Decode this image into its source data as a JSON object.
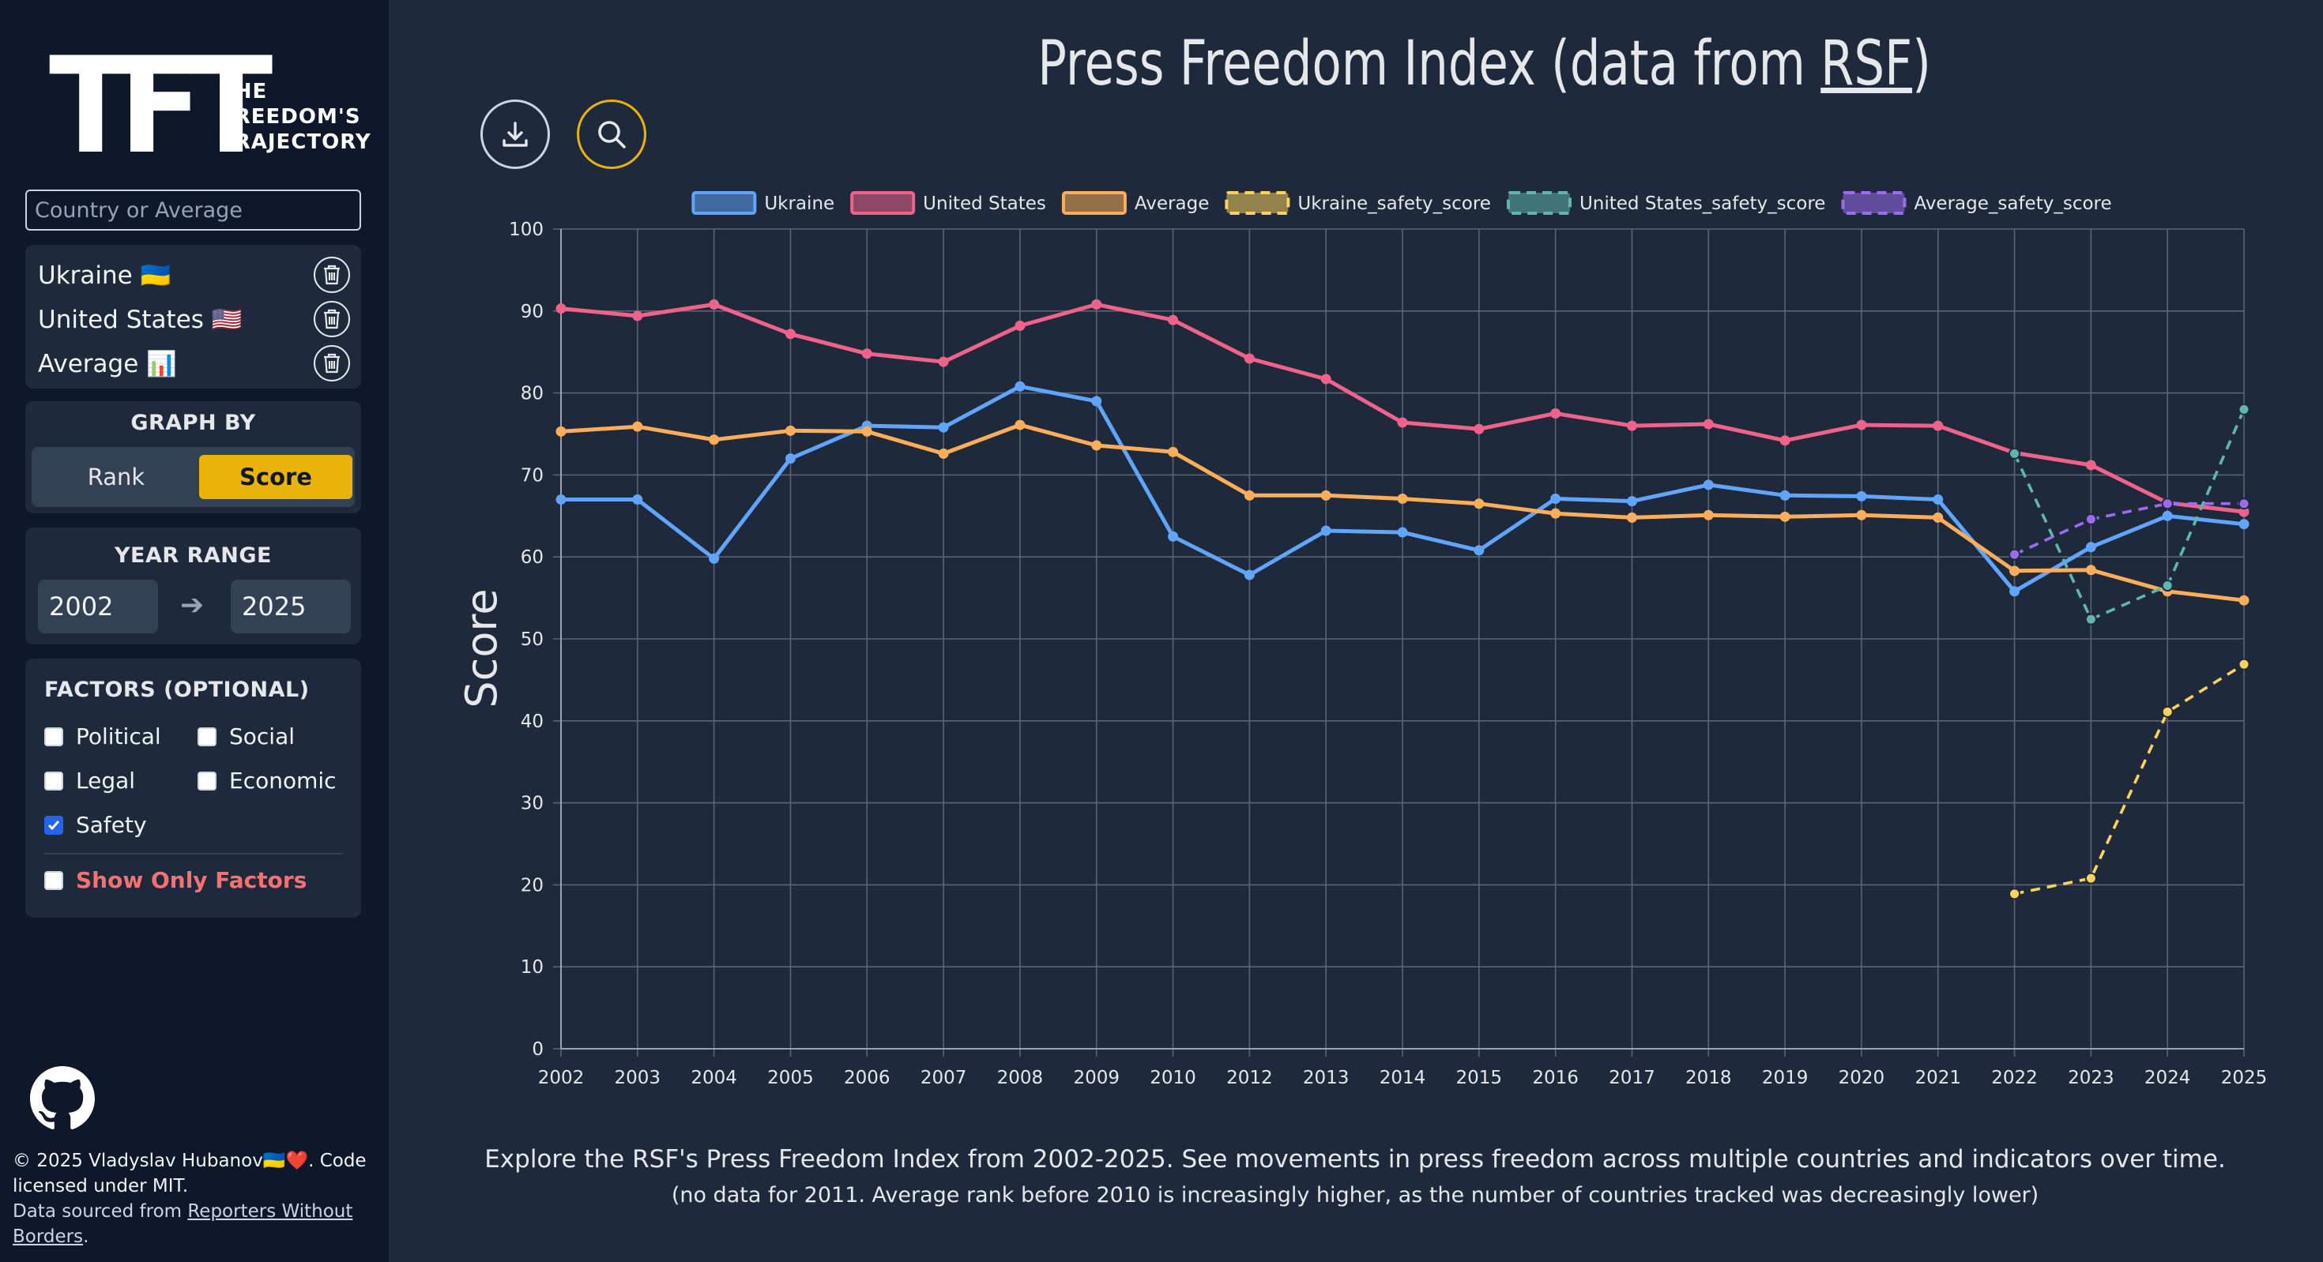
{
  "logo": {
    "big": "TFT",
    "line1": "THE",
    "line2": "FREEDOM'S",
    "line3": "TRAJECTORY"
  },
  "search": {
    "placeholder": "Country or Average"
  },
  "countries": [
    {
      "name": "Ukraine 🇺🇦"
    },
    {
      "name": "United States 🇺🇸"
    },
    {
      "name": "Average 📊"
    }
  ],
  "graph_by": {
    "title": "GRAPH BY",
    "rank": "Rank",
    "score": "Score",
    "selected": "Score"
  },
  "year_range": {
    "title": "YEAR RANGE",
    "from": "2002",
    "arrow": "➔",
    "to": "2025"
  },
  "factors": {
    "title": "FACTORS (OPTIONAL)",
    "items": [
      {
        "label": "Political",
        "checked": false
      },
      {
        "label": "Social",
        "checked": false
      },
      {
        "label": "Legal",
        "checked": false
      },
      {
        "label": "Economic",
        "checked": false
      },
      {
        "label": "Safety",
        "checked": true
      }
    ],
    "show_only": "Show Only Factors"
  },
  "footer": {
    "line1": "© 2025 Vladyslav Hubanov🇺🇦❤️. Code licensed under MIT.",
    "sourced": "Data sourced from ",
    "link": "Reporters Without Borders",
    "end": "."
  },
  "main": {
    "title_prefix": "Press Freedom Index (data from ",
    "title_link": "RSF",
    "title_suffix": ")",
    "description": "Explore the RSF's Press Freedom Index from 2002-2025. See movements in press freedom across multiple countries and indicators over time.",
    "note": "(no data for 2011. Average rank before 2010 is increasingly higher, as the number of countries tracked was decreasingly lower)"
  },
  "colors": {
    "ukraine": "#60a5fa",
    "us": "#f0628a",
    "average": "#fbad59",
    "ukraine_safety": "#fcd15c",
    "us_safety": "#5fb6b0",
    "average_safety": "#9b6bf0",
    "accent": "#eab308"
  },
  "chart_data": {
    "type": "line",
    "ylabel": "Score",
    "ylim": [
      0,
      100
    ],
    "yticks": [
      0,
      10,
      20,
      30,
      40,
      50,
      60,
      70,
      80,
      90,
      100
    ],
    "x": [
      "2002",
      "2003",
      "2004",
      "2005",
      "2006",
      "2007",
      "2008",
      "2009",
      "2010",
      "2012",
      "2013",
      "2014",
      "2015",
      "2016",
      "2017",
      "2018",
      "2019",
      "2020",
      "2021",
      "2022",
      "2023",
      "2024",
      "2025"
    ],
    "grid": true,
    "legend": "top",
    "series": [
      {
        "name": "Ukraine",
        "color": "#60a5fa",
        "dashed": false,
        "values": [
          67.0,
          67.0,
          59.8,
          72.0,
          76.0,
          75.8,
          80.8,
          79.0,
          62.5,
          57.8,
          63.2,
          63.0,
          60.8,
          67.1,
          66.8,
          68.8,
          67.5,
          67.4,
          67.0,
          55.8,
          61.2,
          65.0,
          64.0
        ]
      },
      {
        "name": "United States",
        "color": "#f0628a",
        "dashed": false,
        "values": [
          90.3,
          89.4,
          90.8,
          87.2,
          84.8,
          83.8,
          88.2,
          90.8,
          88.9,
          84.2,
          81.7,
          76.4,
          75.6,
          77.5,
          76.0,
          76.2,
          74.2,
          76.1,
          76.0,
          72.7,
          71.2,
          66.6,
          65.5
        ]
      },
      {
        "name": "Average",
        "color": "#fbad59",
        "dashed": false,
        "values": [
          75.3,
          75.9,
          74.3,
          75.4,
          75.3,
          72.6,
          76.1,
          73.6,
          72.8,
          67.5,
          67.5,
          67.1,
          66.5,
          65.3,
          64.8,
          65.1,
          64.9,
          65.1,
          64.8,
          58.3,
          58.4,
          55.8,
          54.7
        ]
      },
      {
        "name": "Ukraine_safety_score",
        "color": "#fcd15c",
        "dashed": true,
        "values": [
          null,
          null,
          null,
          null,
          null,
          null,
          null,
          null,
          null,
          null,
          null,
          null,
          null,
          null,
          null,
          null,
          null,
          null,
          null,
          18.9,
          20.8,
          41.1,
          46.9
        ]
      },
      {
        "name": "United States_safety_score",
        "color": "#5fb6b0",
        "dashed": true,
        "values": [
          null,
          null,
          null,
          null,
          null,
          null,
          null,
          null,
          null,
          null,
          null,
          null,
          null,
          null,
          null,
          null,
          null,
          null,
          null,
          72.6,
          52.4,
          56.5,
          78.0
        ]
      },
      {
        "name": "Average_safety_score",
        "color": "#9b6bf0",
        "dashed": true,
        "values": [
          null,
          null,
          null,
          null,
          null,
          null,
          null,
          null,
          null,
          null,
          null,
          null,
          null,
          null,
          null,
          null,
          null,
          null,
          null,
          60.3,
          64.6,
          66.5,
          66.5
        ]
      }
    ]
  }
}
